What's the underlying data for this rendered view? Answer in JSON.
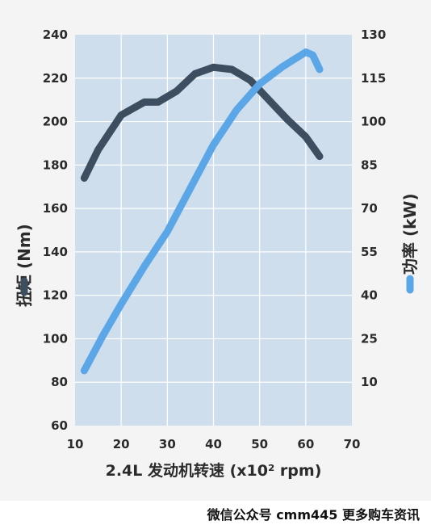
{
  "chart_data": {
    "type": "line",
    "x_axis": {
      "label": "2.4L 发动机转速 (x10² rpm)",
      "range": [
        10,
        70
      ],
      "ticks": [
        "10",
        "20",
        "30",
        "40",
        "50",
        "60",
        "70"
      ]
    },
    "y_axis_left": {
      "label": "扭矩 (Nm)",
      "range": [
        60,
        240
      ],
      "ticks": [
        "60",
        "80",
        "100",
        "120",
        "140",
        "160",
        "180",
        "200",
        "220",
        "240"
      ]
    },
    "y_axis_right": {
      "label": "功率 (kW)",
      "range": [
        -5,
        130
      ],
      "ticks": [
        "10",
        "25",
        "40",
        "55",
        "70",
        "85",
        "100",
        "115",
        "130"
      ]
    },
    "grid": true,
    "series": [
      {
        "name": "扭矩",
        "axis": "left",
        "color": "#3d4e60",
        "x": [
          12,
          15,
          20,
          25,
          28,
          32,
          36,
          40,
          44,
          48,
          52,
          56,
          60,
          63
        ],
        "y": [
          174,
          187,
          203,
          209,
          209,
          214,
          222,
          225,
          224,
          219,
          210,
          201,
          193,
          184
        ]
      },
      {
        "name": "功率",
        "axis": "right",
        "color": "#5aa6e6",
        "x": [
          12,
          16,
          20,
          25,
          30,
          35,
          40,
          45,
          50,
          55,
          58,
          60,
          61.5,
          63
        ],
        "y": [
          14,
          26,
          37,
          50,
          62,
          77,
          92,
          104,
          113,
          119,
          122,
          124,
          123,
          118
        ]
      }
    ]
  },
  "watermark": "微信公众号 cmm445 更多购车资讯"
}
